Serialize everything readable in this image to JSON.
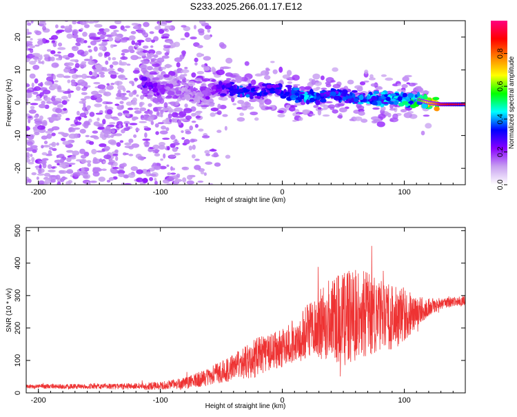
{
  "title": "S233.2025.266.01.17.E12",
  "chart_data": [
    {
      "type": "heatmap",
      "name": "spectrogram",
      "xlabel": "Height of straight line (km)",
      "ylabel": "Frequency (Hz)",
      "xlim": [
        -210,
        150
      ],
      "ylim": [
        -25,
        25
      ],
      "xticks": [
        -200,
        -100,
        0,
        100
      ],
      "xtick_labels": [
        "-200",
        "-100",
        "0",
        "100"
      ],
      "yticks": [
        -20,
        -10,
        0,
        10,
        20
      ],
      "ytick_labels": [
        "-20",
        "-10",
        "0",
        "10",
        "20"
      ],
      "colorbar": {
        "label": "Normalized spectral amplitude",
        "range": [
          0,
          1
        ],
        "ticks": [
          0.0,
          0.2,
          0.4,
          0.6,
          0.8
        ],
        "tick_labels": [
          "0.0",
          "0.2",
          "0.4",
          "0.6",
          "0.8"
        ],
        "colors": [
          "#ffffff",
          "#c8a0f0",
          "#8800ff",
          "#0000ff",
          "#00ffff",
          "#00ff00",
          "#ffff00",
          "#ff8000",
          "#ff0000",
          "#ff0080"
        ]
      },
      "ridge": {
        "x": [
          -115,
          -100,
          -90,
          -80,
          -70,
          -60,
          -50,
          -40,
          -30,
          -20,
          -10,
          0,
          10,
          20,
          30,
          40,
          50,
          60,
          70,
          80,
          90,
          100,
          110,
          120,
          130,
          150
        ],
        "y": [
          6,
          4,
          3.5,
          3,
          2,
          3,
          4,
          4,
          3.5,
          3,
          4,
          3.5,
          2.5,
          1.5,
          2,
          2.5,
          2,
          1.5,
          1.5,
          1,
          1,
          1,
          1,
          0,
          -0.5,
          -0.5
        ],
        "amplitude": [
          0.25,
          0.2,
          0.15,
          0.15,
          0.15,
          0.2,
          0.25,
          0.3,
          0.35,
          0.3,
          0.3,
          0.35,
          0.35,
          0.4,
          0.35,
          0.35,
          0.35,
          0.35,
          0.4,
          0.4,
          0.4,
          0.45,
          0.5,
          0.7,
          0.85,
          0.95
        ]
      },
      "noise_region_x": [
        -210,
        -100
      ]
    },
    {
      "type": "line",
      "name": "snr",
      "xlabel": "Height of straight line (km)",
      "ylabel": "SNR (10 * v/v)",
      "xlim": [
        -210,
        150
      ],
      "ylim": [
        0,
        510
      ],
      "xticks": [
        -200,
        -100,
        0,
        100
      ],
      "xtick_labels": [
        "-200",
        "-100",
        "0",
        "100"
      ],
      "yticks": [
        0,
        100,
        200,
        300,
        400,
        500
      ],
      "ytick_labels": [
        "0",
        "100",
        "200",
        "300",
        "400",
        "500"
      ],
      "color": "#ee3333",
      "envelope": {
        "x": [
          -210,
          -150,
          -120,
          -100,
          -80,
          -60,
          -40,
          -20,
          0,
          10,
          20,
          30,
          40,
          50,
          60,
          70,
          80,
          90,
          100,
          110,
          120,
          130,
          150
        ],
        "mean": [
          20,
          20,
          20,
          22,
          30,
          50,
          80,
          110,
          140,
          160,
          185,
          210,
          230,
          230,
          240,
          240,
          235,
          235,
          240,
          250,
          265,
          275,
          285
        ],
        "spread": [
          10,
          12,
          15,
          18,
          25,
          40,
          60,
          90,
          90,
          100,
          120,
          150,
          190,
          210,
          200,
          190,
          170,
          150,
          120,
          70,
          40,
          25,
          20
        ]
      }
    }
  ]
}
